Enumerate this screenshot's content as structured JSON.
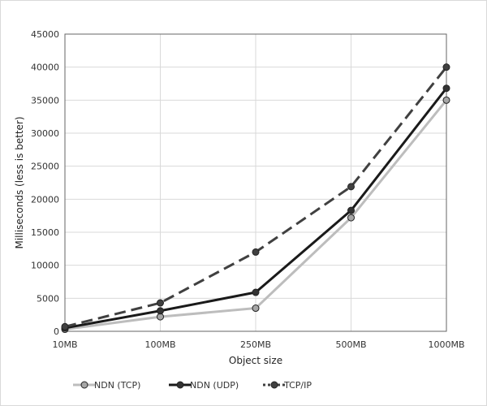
{
  "chart_data": {
    "type": "line",
    "categories": [
      "10MB",
      "100MB",
      "250MB",
      "500MB",
      "1000MB"
    ],
    "xlabel": "Object size",
    "ylabel": "Milliseconds (less is better)",
    "ylim": [
      0,
      45000
    ],
    "yticks": [
      0,
      5000,
      10000,
      15000,
      20000,
      25000,
      30000,
      35000,
      40000,
      45000
    ],
    "grid": true,
    "legend_position": "bottom",
    "series": [
      {
        "name": "NDN (TCP)",
        "values": [
          300,
          2200,
          3500,
          17200,
          35000
        ],
        "color": "#bdbdbd",
        "marker_fill": "#a6a6a6",
        "dash": "solid"
      },
      {
        "name": "NDN (UDP)",
        "values": [
          500,
          3100,
          5900,
          18300,
          36800
        ],
        "color": "#1a1a1a",
        "marker_fill": "#333333",
        "dash": "solid"
      },
      {
        "name": "TCP/IP",
        "values": [
          700,
          4300,
          12000,
          21900,
          40000
        ],
        "color": "#404040",
        "marker_fill": "#404040",
        "dash": "dashed"
      }
    ]
  }
}
